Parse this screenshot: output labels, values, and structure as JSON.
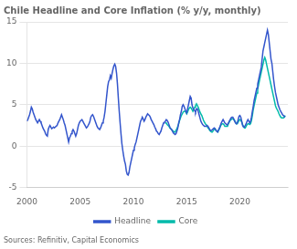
{
  "chart_data": {
    "type": "line",
    "title": "Chile Headline and Core Inflation (% y/y, monthly)",
    "annotations": [
      "Sources: Refinitiv, Capital Economics"
    ],
    "xlim": [
      2000.0,
      2024.5
    ],
    "ylim": [
      -5,
      15
    ],
    "yticks": [
      -5,
      0,
      5,
      10,
      15
    ],
    "xticks": [
      2000,
      2005,
      2010,
      2015,
      2020
    ],
    "grid": "y",
    "legend": "bottom",
    "series": [
      {
        "name": "Headline",
        "color": "#3355CC",
        "x": [
          2000.0,
          2000.083,
          2000.167,
          2000.25,
          2000.333,
          2000.417,
          2000.5,
          2000.583,
          2000.667,
          2000.75,
          2000.833,
          2000.917,
          2001.0,
          2001.083,
          2001.167,
          2001.25,
          2001.333,
          2001.417,
          2001.5,
          2001.583,
          2001.667,
          2001.75,
          2001.833,
          2001.917,
          2002.0,
          2002.083,
          2002.167,
          2002.25,
          2002.333,
          2002.417,
          2002.5,
          2002.583,
          2002.667,
          2002.75,
          2002.833,
          2002.917,
          2003.0,
          2003.083,
          2003.167,
          2003.25,
          2003.333,
          2003.417,
          2003.5,
          2003.583,
          2003.667,
          2003.75,
          2003.833,
          2003.917,
          2004.0,
          2004.083,
          2004.167,
          2004.25,
          2004.333,
          2004.417,
          2004.5,
          2004.583,
          2004.667,
          2004.75,
          2004.833,
          2004.917,
          2005.0,
          2005.083,
          2005.167,
          2005.25,
          2005.333,
          2005.417,
          2005.5,
          2005.583,
          2005.667,
          2005.75,
          2005.833,
          2005.917,
          2006.0,
          2006.083,
          2006.167,
          2006.25,
          2006.333,
          2006.417,
          2006.5,
          2006.583,
          2006.667,
          2006.75,
          2006.833,
          2006.917,
          2007.0,
          2007.083,
          2007.167,
          2007.25,
          2007.333,
          2007.417,
          2007.5,
          2007.583,
          2007.667,
          2007.75,
          2007.833,
          2007.917,
          2008.0,
          2008.083,
          2008.167,
          2008.25,
          2008.333,
          2008.417,
          2008.5,
          2008.583,
          2008.667,
          2008.75,
          2008.833,
          2008.917,
          2009.0,
          2009.083,
          2009.167,
          2009.25,
          2009.333,
          2009.417,
          2009.5,
          2009.583,
          2009.667,
          2009.75,
          2009.833,
          2009.917,
          2010.0,
          2010.083,
          2010.167,
          2010.25,
          2010.333,
          2010.417,
          2010.5,
          2010.583,
          2010.667,
          2010.75,
          2010.833,
          2010.917,
          2011.0,
          2011.083,
          2011.167,
          2011.25,
          2011.333,
          2011.417,
          2011.5,
          2011.583,
          2011.667,
          2011.75,
          2011.833,
          2011.917,
          2012.0,
          2012.083,
          2012.167,
          2012.25,
          2012.333,
          2012.417,
          2012.5,
          2012.583,
          2012.667,
          2012.75,
          2012.833,
          2012.917,
          2013.0,
          2013.083,
          2013.167,
          2013.25,
          2013.333,
          2013.417,
          2013.5,
          2013.583,
          2013.667,
          2013.75,
          2013.833,
          2013.917,
          2014.0,
          2014.083,
          2014.167,
          2014.25,
          2014.333,
          2014.417,
          2014.5,
          2014.583,
          2014.667,
          2014.75,
          2014.833,
          2014.917,
          2015.0,
          2015.083,
          2015.167,
          2015.25,
          2015.333,
          2015.417,
          2015.5,
          2015.583,
          2015.667,
          2015.75,
          2015.833,
          2015.917,
          2016.0,
          2016.083,
          2016.167,
          2016.25,
          2016.333,
          2016.417,
          2016.5,
          2016.583,
          2016.667,
          2016.75,
          2016.833,
          2016.917,
          2017.0,
          2017.083,
          2017.167,
          2017.25,
          2017.333,
          2017.417,
          2017.5,
          2017.583,
          2017.667,
          2017.75,
          2017.833,
          2017.917,
          2018.0,
          2018.083,
          2018.167,
          2018.25,
          2018.333,
          2018.417,
          2018.5,
          2018.583,
          2018.667,
          2018.75,
          2018.833,
          2018.917,
          2019.0,
          2019.083,
          2019.167,
          2019.25,
          2019.333,
          2019.417,
          2019.5,
          2019.583,
          2019.667,
          2019.75,
          2019.833,
          2019.917,
          2020.0,
          2020.083,
          2020.167,
          2020.25,
          2020.333,
          2020.417,
          2020.5,
          2020.583,
          2020.667,
          2020.75,
          2020.833,
          2020.917,
          2021.0,
          2021.083,
          2021.167,
          2021.25,
          2021.333,
          2021.417,
          2021.5,
          2021.583,
          2021.667,
          2021.75,
          2021.833,
          2021.917,
          2022.0,
          2022.083,
          2022.167,
          2022.25,
          2022.333,
          2022.417,
          2022.5,
          2022.583,
          2022.667,
          2022.75,
          2022.833,
          2022.917,
          2023.0,
          2023.083,
          2023.167,
          2023.25,
          2023.333,
          2023.417,
          2023.5,
          2023.583,
          2023.667,
          2023.75,
          2023.833,
          2023.917,
          2024.0,
          2024.083,
          2024.167,
          2024.25
        ],
        "values": [
          3.0,
          3.2,
          3.5,
          3.8,
          4.2,
          4.7,
          4.5,
          4.1,
          3.8,
          3.5,
          3.2,
          3.0,
          2.8,
          3.0,
          3.2,
          3.0,
          2.8,
          2.5,
          2.2,
          2.0,
          1.8,
          1.5,
          1.3,
          1.2,
          2.0,
          2.3,
          2.5,
          2.3,
          2.1,
          2.2,
          2.3,
          2.2,
          2.3,
          2.4,
          2.5,
          2.8,
          3.0,
          3.2,
          3.5,
          3.8,
          3.5,
          3.2,
          2.8,
          2.5,
          2.0,
          1.5,
          1.0,
          0.5,
          1.0,
          1.2,
          1.5,
          1.8,
          2.0,
          1.8,
          1.5,
          1.2,
          1.5,
          2.0,
          2.5,
          2.8,
          3.0,
          3.1,
          3.2,
          3.0,
          2.8,
          2.6,
          2.4,
          2.2,
          2.3,
          2.5,
          2.7,
          3.0,
          3.5,
          3.7,
          3.8,
          3.6,
          3.3,
          3.0,
          2.7,
          2.4,
          2.2,
          2.1,
          2.0,
          2.2,
          2.5,
          2.8,
          3.0,
          3.5,
          4.2,
          5.2,
          6.2,
          7.2,
          7.8,
          8.0,
          8.5,
          8.2,
          8.8,
          9.3,
          9.7,
          9.9,
          9.6,
          8.8,
          7.5,
          5.8,
          4.2,
          2.8,
          1.5,
          0.3,
          -0.5,
          -1.2,
          -1.8,
          -2.2,
          -3.0,
          -3.4,
          -3.5,
          -3.2,
          -2.5,
          -2.0,
          -1.5,
          -1.0,
          -0.5,
          -0.2,
          0.2,
          0.5,
          1.0,
          1.5,
          2.0,
          2.5,
          3.0,
          3.2,
          3.5,
          3.3,
          3.0,
          3.2,
          3.5,
          3.7,
          3.9,
          3.8,
          3.7,
          3.5,
          3.2,
          3.0,
          2.8,
          2.6,
          2.3,
          2.1,
          1.8,
          1.7,
          1.5,
          1.4,
          1.6,
          1.8,
          2.2,
          2.5,
          2.8,
          2.9,
          3.0,
          3.2,
          3.1,
          2.9,
          2.6,
          2.3,
          2.1,
          2.0,
          1.8,
          1.6,
          1.5,
          1.4,
          1.5,
          1.8,
          2.2,
          2.8,
          3.2,
          3.8,
          4.2,
          4.8,
          5.0,
          4.8,
          4.5,
          4.2,
          4.0,
          4.5,
          5.0,
          5.5,
          6.0,
          5.8,
          5.0,
          4.6,
          4.4,
          4.3,
          4.1,
          4.5,
          4.5,
          4.2,
          3.8,
          3.4,
          3.0,
          2.8,
          2.6,
          2.5,
          2.4,
          2.4,
          2.4,
          2.5,
          2.4,
          2.2,
          2.0,
          1.9,
          1.9,
          2.0,
          2.1,
          2.2,
          2.1,
          1.9,
          1.8,
          1.7,
          2.0,
          2.2,
          2.5,
          2.8,
          3.0,
          3.2,
          3.0,
          2.8,
          2.7,
          2.6,
          2.6,
          2.8,
          3.0,
          3.2,
          3.4,
          3.5,
          3.5,
          3.3,
          3.0,
          2.8,
          2.7,
          2.8,
          3.2,
          3.6,
          3.7,
          3.5,
          3.0,
          2.5,
          2.3,
          2.3,
          2.5,
          2.7,
          3.0,
          3.2,
          3.0,
          2.8,
          3.0,
          3.5,
          4.2,
          4.8,
          5.5,
          6.0,
          6.5,
          7.0,
          7.5,
          8.0,
          8.5,
          9.0,
          9.5,
          10.5,
          11.5,
          12.0,
          12.5,
          13.0,
          13.5,
          14.0,
          13.5,
          12.5,
          11.5,
          10.5,
          10.0,
          9.0,
          8.0,
          7.2,
          6.5,
          6.0,
          5.5,
          5.0,
          4.7,
          4.4,
          4.2,
          4.0,
          3.8,
          3.7,
          3.6,
          3.5
        ]
      },
      {
        "name": "Core",
        "color": "#00BBAA",
        "x": [
          2013.0,
          2013.083,
          2013.167,
          2013.25,
          2013.333,
          2013.417,
          2013.5,
          2013.583,
          2013.667,
          2013.75,
          2013.833,
          2013.917,
          2014.0,
          2014.083,
          2014.167,
          2014.25,
          2014.333,
          2014.417,
          2014.5,
          2014.583,
          2014.667,
          2014.75,
          2014.833,
          2014.917,
          2015.0,
          2015.083,
          2015.167,
          2015.25,
          2015.333,
          2015.417,
          2015.5,
          2015.583,
          2015.667,
          2015.75,
          2015.833,
          2015.917,
          2016.0,
          2016.083,
          2016.167,
          2016.25,
          2016.333,
          2016.417,
          2016.5,
          2016.583,
          2016.667,
          2016.75,
          2016.833,
          2016.917,
          2017.0,
          2017.083,
          2017.167,
          2017.25,
          2017.333,
          2017.417,
          2017.5,
          2017.583,
          2017.667,
          2017.75,
          2017.833,
          2017.917,
          2018.0,
          2018.083,
          2018.167,
          2018.25,
          2018.333,
          2018.417,
          2018.5,
          2018.583,
          2018.667,
          2018.75,
          2018.833,
          2018.917,
          2019.0,
          2019.083,
          2019.167,
          2019.25,
          2019.333,
          2019.417,
          2019.5,
          2019.583,
          2019.667,
          2019.75,
          2019.833,
          2019.917,
          2020.0,
          2020.083,
          2020.167,
          2020.25,
          2020.333,
          2020.417,
          2020.5,
          2020.583,
          2020.667,
          2020.75,
          2020.833,
          2020.917,
          2021.0,
          2021.083,
          2021.167,
          2021.25,
          2021.333,
          2021.417,
          2021.5,
          2021.583,
          2021.667,
          2021.75,
          2021.833,
          2021.917,
          2022.0,
          2022.083,
          2022.167,
          2022.25,
          2022.333,
          2022.417,
          2022.5,
          2022.583,
          2022.667,
          2022.75,
          2022.833,
          2022.917,
          2023.0,
          2023.083,
          2023.167,
          2023.25,
          2023.333,
          2023.417,
          2023.5,
          2023.583,
          2023.667,
          2023.75,
          2023.833,
          2023.917,
          2024.0,
          2024.083,
          2024.167,
          2024.25
        ],
        "values": [
          2.8,
          2.8,
          2.6,
          2.5,
          2.4,
          2.2,
          2.1,
          2.0,
          1.9,
          1.8,
          1.7,
          1.7,
          1.9,
          2.1,
          2.4,
          2.7,
          3.1,
          3.4,
          3.7,
          3.9,
          4.1,
          4.2,
          4.2,
          4.1,
          3.9,
          4.1,
          4.4,
          4.6,
          4.7,
          4.6,
          4.4,
          4.2,
          4.4,
          4.7,
          4.9,
          5.1,
          4.9,
          4.7,
          4.4,
          4.1,
          3.9,
          3.7,
          3.4,
          3.1,
          2.9,
          2.7,
          2.6,
          2.4,
          2.2,
          2.1,
          1.9,
          1.8,
          1.7,
          1.7,
          1.9,
          2.0,
          2.1,
          1.9,
          1.8,
          1.7,
          1.9,
          2.1,
          2.4,
          2.6,
          2.7,
          2.7,
          2.6,
          2.4,
          2.4,
          2.4,
          2.4,
          2.7,
          2.9,
          3.1,
          3.2,
          3.3,
          3.3,
          3.2,
          3.1,
          2.9,
          2.7,
          2.7,
          2.9,
          3.1,
          3.2,
          3.1,
          2.9,
          2.6,
          2.4,
          2.2,
          2.2,
          2.4,
          2.6,
          2.7,
          2.7,
          2.6,
          2.7,
          3.1,
          3.7,
          4.4,
          4.9,
          5.4,
          5.9,
          6.4,
          6.9,
          7.4,
          7.9,
          8.4,
          8.9,
          9.4,
          9.9,
          10.4,
          10.7,
          10.4,
          9.9,
          9.4,
          8.9,
          8.4,
          7.9,
          7.4,
          6.9,
          6.4,
          5.9,
          5.4,
          4.9,
          4.6,
          4.4,
          4.2,
          3.9,
          3.7,
          3.5,
          3.4,
          3.4,
          3.4,
          3.5,
          3.7
        ]
      }
    ]
  }
}
